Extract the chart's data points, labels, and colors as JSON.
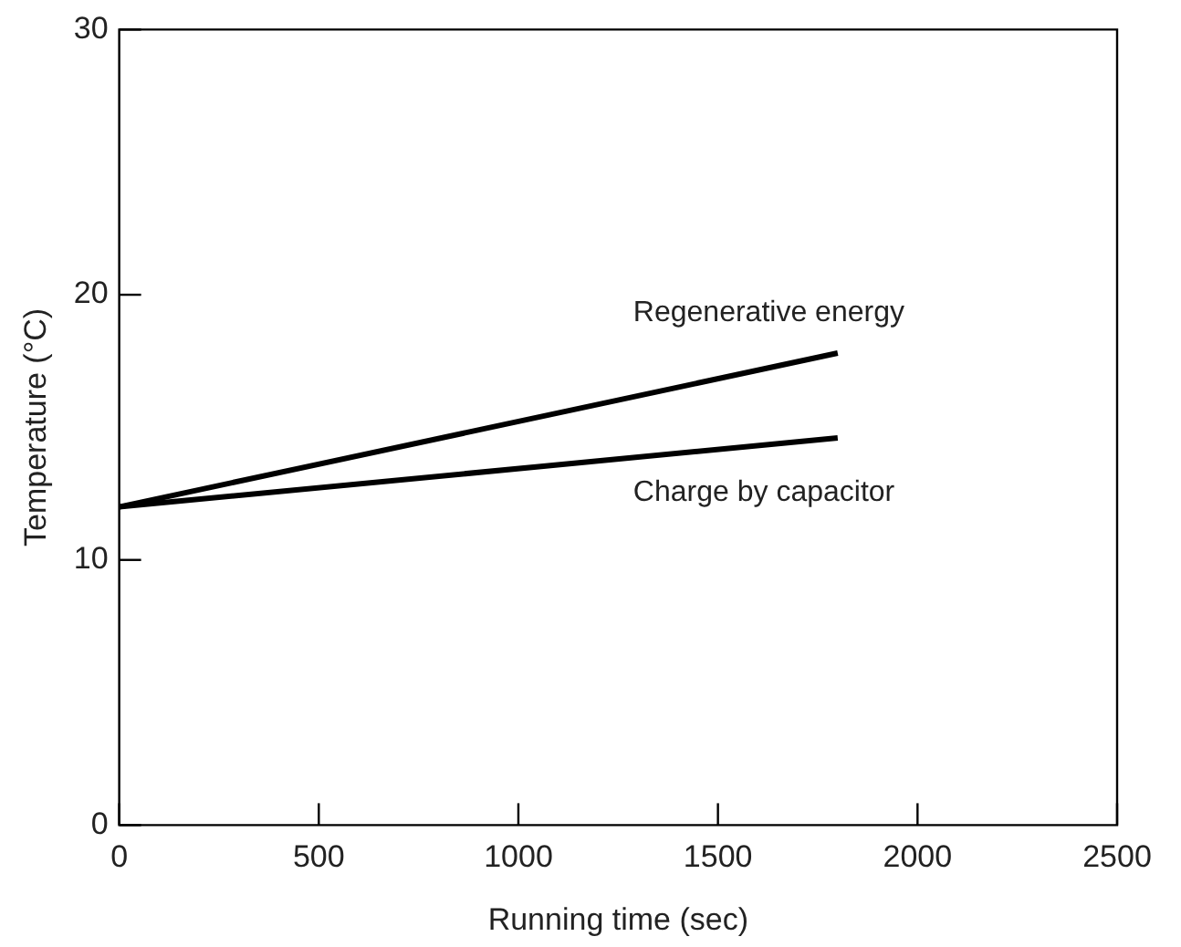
{
  "chart_data": {
    "type": "line",
    "xlabel": "Running time (sec)",
    "ylabel": "Temperature (°C)",
    "x": [
      0,
      1800
    ],
    "series": [
      {
        "name": "Regenerative energy",
        "color": "#000000",
        "values": [
          12,
          17.8
        ]
      },
      {
        "name": "Charge by capacitor",
        "color": "#000000",
        "values": [
          12,
          14.6
        ]
      }
    ],
    "xlim": [
      0,
      2500
    ],
    "xticks": [
      0,
      500,
      1000,
      1500,
      2000,
      2500
    ],
    "ylim": [
      0,
      30
    ],
    "yticks": [
      0,
      10,
      20,
      30
    ],
    "grid": false,
    "legend": false,
    "marker": "none",
    "line_style": "solid"
  }
}
